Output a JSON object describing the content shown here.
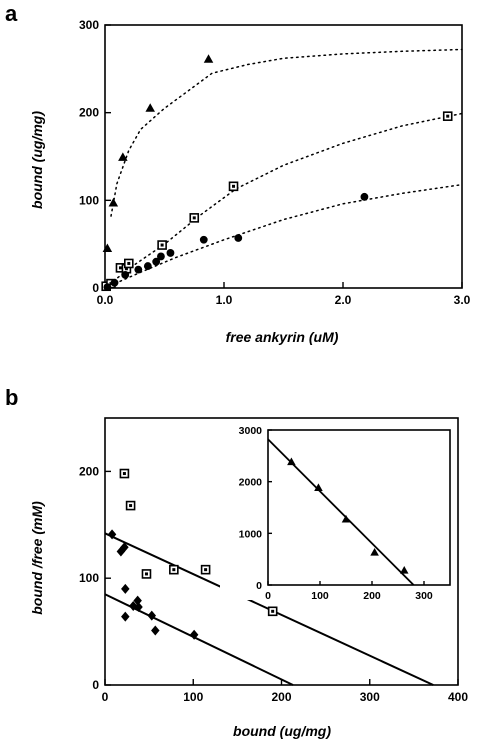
{
  "chart_data": [
    {
      "panel": "a",
      "type": "scatter",
      "xlabel": "free ankyrin (uM)",
      "ylabel": "bound (ug/mg)",
      "xlim": [
        0,
        3.0
      ],
      "ylim": [
        0,
        300
      ],
      "xticks": [
        "0.0",
        "1.0",
        "2.0",
        "3.0"
      ],
      "yticks": [
        "0",
        "100",
        "200",
        "300"
      ],
      "grid": false,
      "series": [
        {
          "marker": "triangle",
          "points": [
            [
              0.02,
              45
            ],
            [
              0.07,
              97
            ],
            [
              0.15,
              149
            ],
            [
              0.38,
              205
            ],
            [
              0.87,
              261
            ]
          ],
          "fit": "dotted",
          "fit_points": [
            [
              0.05,
              82
            ],
            [
              0.1,
              119
            ],
            [
              0.2,
              157
            ],
            [
              0.3,
              181
            ],
            [
              0.5,
              205
            ],
            [
              0.7,
              225
            ],
            [
              0.9,
              245
            ],
            [
              1.2,
              255
            ],
            [
              1.5,
              262
            ],
            [
              2.0,
              267
            ],
            [
              2.5,
              270
            ],
            [
              3.0,
              272
            ]
          ]
        },
        {
          "marker": "square",
          "points": [
            [
              0.01,
              2
            ],
            [
              0.05,
              5
            ],
            [
              0.13,
              23
            ],
            [
              0.18,
              22
            ],
            [
              0.2,
              28
            ],
            [
              0.48,
              49
            ],
            [
              0.75,
              80
            ],
            [
              1.08,
              116
            ],
            [
              2.88,
              196
            ]
          ],
          "fit": "dotted",
          "fit_points": [
            [
              0,
              0
            ],
            [
              0.2,
              22
            ],
            [
              0.5,
              50
            ],
            [
              0.8,
              83
            ],
            [
              1.1,
              113
            ],
            [
              1.5,
              140
            ],
            [
              2.0,
              165
            ],
            [
              2.5,
              185
            ],
            [
              3.0,
              199
            ]
          ]
        },
        {
          "marker": "circle",
          "points": [
            [
              0.02,
              1
            ],
            [
              0.08,
              6
            ],
            [
              0.17,
              15
            ],
            [
              0.28,
              21
            ],
            [
              0.36,
              25
            ],
            [
              0.43,
              30
            ],
            [
              0.47,
              36
            ],
            [
              0.55,
              40
            ],
            [
              0.83,
              55
            ],
            [
              1.12,
              57
            ],
            [
              2.18,
              104
            ]
          ],
          "fit": "dotted",
          "fit_points": [
            [
              0,
              0
            ],
            [
              0.3,
              18
            ],
            [
              0.6,
              35
            ],
            [
              1.0,
              55
            ],
            [
              1.5,
              78
            ],
            [
              2.0,
              96
            ],
            [
              2.5,
              108
            ],
            [
              3.0,
              118
            ]
          ]
        }
      ]
    },
    {
      "panel": "b",
      "type": "scatter",
      "xlabel": "bound (ug/mg)",
      "ylabel": "bound /free (mM)",
      "xlim": [
        0,
        400
      ],
      "ylim": [
        0,
        250
      ],
      "xticks": [
        "0",
        "100",
        "200",
        "300",
        "400"
      ],
      "yticks": [
        "0",
        "100",
        "200"
      ],
      "grid": false,
      "series": [
        {
          "marker": "square",
          "points": [
            [
              22,
              198
            ],
            [
              29,
              168
            ],
            [
              47,
              104
            ],
            [
              78,
              108
            ],
            [
              114,
              108
            ],
            [
              190,
              69
            ]
          ],
          "fit_line": [
            [
              0,
              142
            ],
            [
              372,
              0
            ]
          ]
        },
        {
          "marker": "diamond",
          "points": [
            [
              8,
              141
            ],
            [
              18,
              125
            ],
            [
              22,
              129
            ],
            [
              23,
              90
            ],
            [
              23,
              64
            ],
            [
              32,
              74
            ],
            [
              37,
              79
            ],
            [
              38,
              73
            ],
            [
              53,
              65
            ],
            [
              57,
              51
            ],
            [
              101,
              47
            ]
          ],
          "fit_line": [
            [
              0,
              85
            ],
            [
              213,
              0
            ]
          ]
        }
      ],
      "inset": {
        "xlim": [
          0,
          350
        ],
        "ylim": [
          0,
          3000
        ],
        "xticks": [
          "0",
          "100",
          "200",
          "300"
        ],
        "yticks": [
          "0",
          "1000",
          "2000",
          "3000"
        ],
        "series": [
          {
            "marker": "triangle",
            "points": [
              [
                45,
                2380
              ],
              [
                97,
                1880
              ],
              [
                150,
                1270
              ],
              [
                205,
                630
              ],
              [
                262,
                280
              ]
            ],
            "fit_line": [
              [
                0,
                2820
              ],
              [
                280,
                0
              ]
            ]
          }
        ]
      }
    }
  ]
}
